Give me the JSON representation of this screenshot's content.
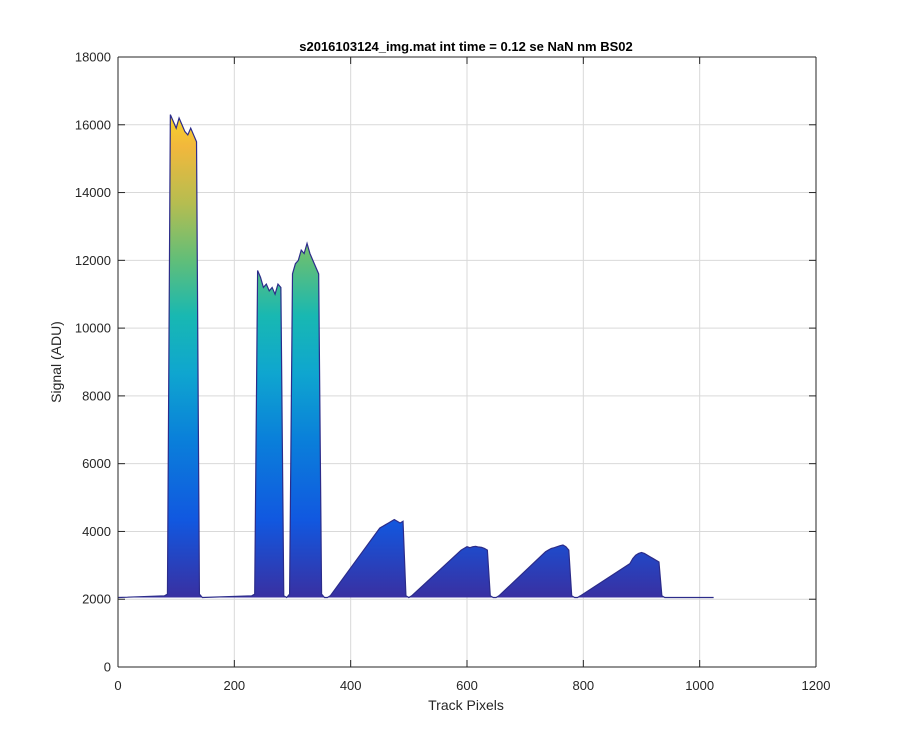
{
  "chart_data": {
    "type": "area",
    "title": "s2016103124_img.mat int time = 0.12 se  NaN nm BS02",
    "xlabel": "Track Pixels",
    "ylabel": "Signal (ADU)",
    "xlim": [
      0,
      1200
    ],
    "ylim": [
      0,
      18000
    ],
    "xticks": [
      0,
      200,
      400,
      600,
      800,
      1000,
      1200
    ],
    "yticks": [
      0,
      2000,
      4000,
      6000,
      8000,
      10000,
      12000,
      14000,
      16000,
      18000
    ],
    "grid": true,
    "colormap": "parula",
    "colors": {
      "baseline": "#2c2c8a",
      "low": "#3a2fa0",
      "mid": "#0a76d9",
      "teal": "#14b0c2",
      "green": "#8ebf55",
      "high": "#f5d320",
      "gridline": "#d9d9d9",
      "axis": "#262626"
    },
    "baseline_level": 2050,
    "x_end": 1024,
    "series": [
      {
        "x": [
          0,
          80,
          85,
          90,
          95,
          100,
          105,
          110,
          115,
          120,
          125,
          130,
          135,
          140,
          145,
          230,
          235,
          240,
          245,
          250,
          255,
          260,
          265,
          270,
          275,
          280,
          285,
          290,
          295,
          300,
          305,
          310,
          315,
          320,
          325,
          330,
          335,
          340,
          345,
          350,
          355,
          360,
          365,
          450,
          455,
          460,
          465,
          470,
          475,
          480,
          485,
          490,
          495,
          500,
          505,
          590,
          595,
          600,
          605,
          610,
          615,
          620,
          625,
          630,
          635,
          640,
          645,
          650,
          655,
          735,
          740,
          745,
          750,
          755,
          760,
          765,
          770,
          775,
          780,
          785,
          790,
          795,
          880,
          885,
          890,
          895,
          900,
          905,
          910,
          915,
          920,
          925,
          930,
          935,
          940,
          945,
          1024
        ],
        "values": [
          2050,
          2100,
          2150,
          16300,
          16100,
          15900,
          16200,
          16000,
          15800,
          15700,
          15900,
          15700,
          15500,
          2150,
          2050,
          2100,
          2150,
          11700,
          11500,
          11200,
          11300,
          11100,
          11200,
          11000,
          11300,
          11200,
          2100,
          2050,
          2150,
          11600,
          11900,
          12000,
          12300,
          12200,
          12500,
          12200,
          12000,
          11800,
          11600,
          2150,
          2050,
          2050,
          2100,
          4100,
          4150,
          4200,
          4250,
          4300,
          4350,
          4300,
          4250,
          4300,
          2100,
          2050,
          2100,
          3450,
          3500,
          3550,
          3520,
          3550,
          3560,
          3540,
          3530,
          3500,
          3450,
          2100,
          2050,
          2050,
          2100,
          3400,
          3450,
          3500,
          3520,
          3550,
          3580,
          3600,
          3550,
          3450,
          2100,
          2050,
          2050,
          2100,
          3050,
          3200,
          3300,
          3350,
          3380,
          3350,
          3300,
          3250,
          3200,
          3150,
          3100,
          2100,
          2050,
          2050,
          2050
        ]
      }
    ]
  }
}
